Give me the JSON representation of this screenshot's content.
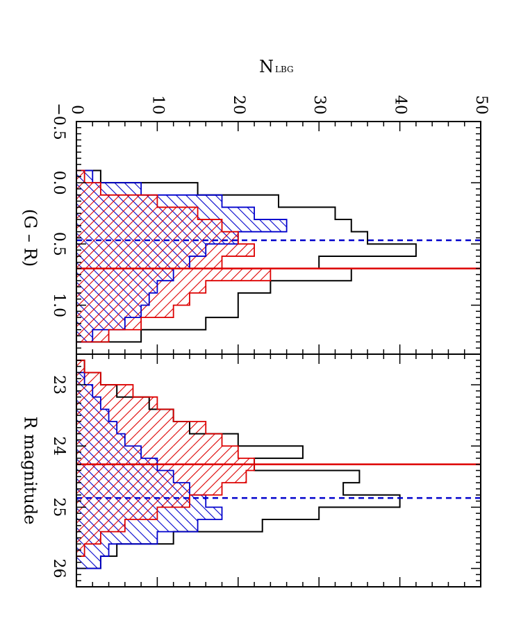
{
  "chart_data": [
    {
      "type": "histogram",
      "xlabel": "(G – R)",
      "xlim": [
        -0.5,
        1.4
      ],
      "ylim": [
        0,
        50
      ],
      "x_ticks": [
        "−0.5",
        "0.0",
        "0.5",
        "1.0"
      ],
      "x_tick_values": [
        -0.5,
        0.0,
        0.5,
        1.0
      ],
      "y_ticks": [
        "0",
        "10",
        "20",
        "30",
        "40",
        "50"
      ],
      "bin_edges": [
        -0.1,
        0.0,
        0.1,
        0.2,
        0.3,
        0.4,
        0.5,
        0.6,
        0.7,
        0.8,
        0.9,
        1.0,
        1.1,
        1.2,
        1.3
      ],
      "series": [
        {
          "color": "#000000",
          "style": "outline",
          "values": [
            3,
            15,
            25,
            32,
            34,
            36,
            42,
            30,
            34,
            24,
            20,
            20,
            16,
            8
          ]
        },
        {
          "color": "#0000cc",
          "style": "hatch-backslash",
          "values": [
            2,
            8,
            18,
            22,
            26,
            20,
            16,
            14,
            12,
            10,
            9,
            8,
            6,
            2
          ]
        },
        {
          "color": "#dd0000",
          "style": "hatch-slash",
          "values": [
            1,
            3,
            10,
            15,
            18,
            20,
            22,
            18,
            24,
            16,
            14,
            12,
            8,
            4
          ]
        }
      ],
      "vlines": [
        {
          "x": 0.47,
          "color": "#0000cc",
          "style": "dashed"
        },
        {
          "x": 0.7,
          "color": "#dd0000",
          "style": "solid"
        }
      ]
    },
    {
      "type": "histogram",
      "xlabel": "R magnitude",
      "xlim": [
        22.5,
        26.3
      ],
      "ylim": [
        0,
        50
      ],
      "x_ticks": [
        "23",
        "24",
        "25",
        "26"
      ],
      "x_tick_values": [
        23,
        24,
        25,
        26
      ],
      "y_ticks": [
        "0",
        "10",
        "20",
        "30",
        "40",
        "50"
      ],
      "bin_edges": [
        22.6,
        22.8,
        23.0,
        23.2,
        23.4,
        23.6,
        23.8,
        24.0,
        24.2,
        24.4,
        24.6,
        24.8,
        25.0,
        25.2,
        25.4,
        25.6,
        25.8,
        26.0
      ],
      "series": [
        {
          "color": "#000000",
          "style": "outline",
          "values": [
            1,
            3,
            5,
            9,
            12,
            14,
            20,
            28,
            22,
            35,
            33,
            40,
            30,
            23,
            12,
            5,
            3
          ]
        },
        {
          "color": "#0000cc",
          "style": "hatch-backslash",
          "values": [
            0,
            1,
            2,
            3,
            4,
            5,
            6,
            8,
            10,
            12,
            14,
            16,
            18,
            15,
            10,
            4,
            3
          ]
        },
        {
          "color": "#dd0000",
          "style": "hatch-slash",
          "values": [
            1,
            3,
            7,
            10,
            12,
            16,
            18,
            20,
            22,
            21,
            18,
            14,
            10,
            6,
            3,
            1,
            0
          ]
        }
      ],
      "vlines": [
        {
          "x": 24.3,
          "color": "#dd0000",
          "style": "solid"
        },
        {
          "x": 24.85,
          "color": "#0000cc",
          "style": "dashed"
        }
      ]
    }
  ],
  "shared_ylabel_main": "N",
  "shared_ylabel_sub": "LBG"
}
